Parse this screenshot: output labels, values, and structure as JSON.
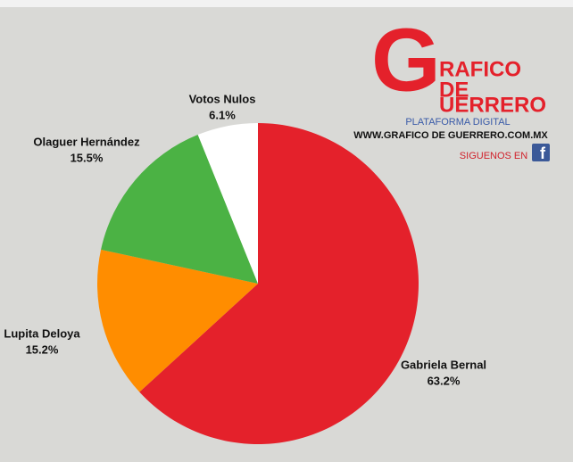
{
  "chart_data": {
    "type": "pie",
    "categories": [
      "Gabriela Bernal",
      "Lupita Deloya",
      "Olaguer Hernández",
      "Votos Nulos"
    ],
    "values": [
      63.2,
      15.2,
      15.5,
      6.1
    ],
    "value_labels": [
      "63.2%",
      "15.2%",
      "15.5%",
      "6.1%"
    ],
    "colors": [
      "#e4212b",
      "#ff8d00",
      "#4bb244",
      "#ffffff"
    ]
  },
  "logo": {
    "big_letter": "G",
    "lines": [
      "RAFICO",
      "DE",
      "UERRERO"
    ],
    "subtitle": "PLATAFORMA DIGITAL",
    "url": "WWW.GRAFICO DE GUERRERO.COM.MX",
    "follow": "SIGUENOS EN",
    "facebook_icon": "f"
  }
}
